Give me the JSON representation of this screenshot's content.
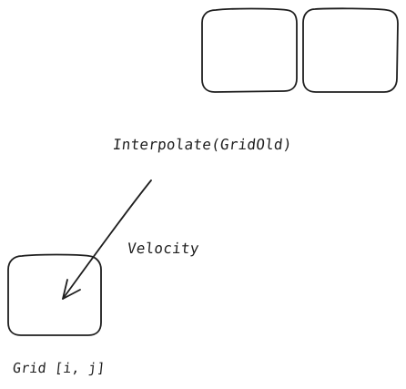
{
  "diagram": {
    "labels": {
      "interpolate": "Interpolate(GridOld)",
      "velocity": "Velocity",
      "grid": "Grid [i, j]"
    },
    "stroke_color": "#1e1e1e",
    "background_color": "#ffffff"
  }
}
